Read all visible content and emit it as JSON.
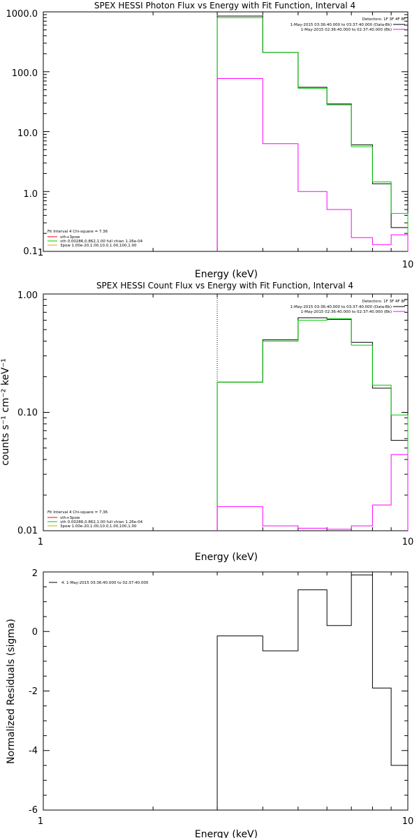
{
  "colors": {
    "data": "#000000",
    "total": "#00cc00",
    "bk": "#ff00ff",
    "vth": "#ff0000",
    "pow": "#00cc00",
    "pow_legend": "#ccaa00"
  },
  "chart_data": [
    {
      "type": "line",
      "title": "SPEX HESSI Photon Flux vs Energy with Fit Function, Interval 4",
      "xlabel": "Energy (keV)",
      "ylabel": "",
      "xscale": "log",
      "yscale": "log",
      "xlim": [
        1,
        10
      ],
      "ylim": [
        0.1,
        1000
      ],
      "xticks": [
        "1",
        "10"
      ],
      "yticks": [
        "0.1",
        "1.0",
        "10.0",
        "100.0",
        "1000.0"
      ],
      "legend_top": [
        "Detectors: 1F 3F 4F 8F",
        "1-May-2015 03:36:40.000 to 03:37:40.000 (Data-Bk)",
        "1-May-2015 02:36:40.000 to 02:37:40.000 (Bk)"
      ],
      "legend_bottom": [
        "Fit Interval 4   Chi-square = 7.36",
        "vth+3pow",
        "vth 0.00286,0.862,1.00  full chian 1.26e-04",
        "3pow 1.00e-20,1.00,10.0,1.00,100,1.00"
      ],
      "edges": [
        3.0,
        4.0,
        5.0,
        6.0,
        7.0,
        8.0,
        9.0,
        10.0
      ],
      "series": [
        {
          "name": "1-May-2015 03:36:40.000 to 03:37:40.000 (Data-Bk)",
          "values": [
            850,
            210,
            55,
            29,
            6,
            1.35,
            0.25
          ]
        },
        {
          "name": "vth+3pow",
          "values": [
            800,
            210,
            53,
            28,
            5.6,
            1.45,
            0.43
          ]
        },
        {
          "name": "1-May-2015 02:36:40.000 to 02:37:40.000 (Bk)",
          "values": [
            77,
            6.3,
            1.0,
            0.5,
            0.17,
            0.13,
            0.19
          ]
        }
      ]
    },
    {
      "type": "line",
      "title": "SPEX HESSI Count Flux vs Energy with Fit Function, Interval 4",
      "xlabel": "Energy (keV)",
      "ylabel": "counts s⁻¹ cm⁻² keV⁻¹",
      "xscale": "log",
      "yscale": "log",
      "xlim": [
        1,
        10
      ],
      "ylim": [
        0.01,
        1
      ],
      "xticks": [
        "1",
        "10"
      ],
      "yticks": [
        "0.01",
        "0.10",
        "1.00"
      ],
      "legend_top": [
        "Detectors: 1F 3F 4F 8F",
        "1-May-2015 03:36:40.000 to 03:37:40.000 (Data-Bk)",
        "1-May-2015 02:36:40.000 to 02:37:40.000 (Bk)"
      ],
      "legend_bottom": [
        "Fit Interval 4   Chi-square = 7.36",
        "vth+3pow",
        "vth 0.00286,0.862,1.00  full chian 1.26e-04",
        "3pow 1.00e-20,1.00,10.0,1.00,100,1.00"
      ],
      "edges": [
        3.0,
        4.0,
        5.0,
        6.0,
        7.0,
        8.0,
        9.0,
        10.0
      ],
      "series": [
        {
          "name": "1-May-2015 03:36:40.000 to 03:37:40.000 (Data-Bk)",
          "values": [
            0.18,
            0.41,
            0.63,
            0.61,
            0.39,
            0.16,
            0.058
          ]
        },
        {
          "name": "vth+3pow",
          "values": [
            0.18,
            0.4,
            0.6,
            0.62,
            0.37,
            0.17,
            0.095
          ]
        },
        {
          "name": "1-May-2015 02:36:40.000 to 02:37:40.000 (Bk)",
          "values": [
            0.016,
            0.011,
            0.0105,
            0.0103,
            0.011,
            0.0165,
            0.044
          ]
        }
      ]
    },
    {
      "type": "line",
      "title": "",
      "xlabel": "Energy (keV)",
      "ylabel": "Normalized Residuals (sigma)",
      "xscale": "log",
      "yscale": "linear",
      "xlim": [
        1,
        10
      ],
      "ylim": [
        -6,
        2
      ],
      "xticks": [
        "1",
        "10"
      ],
      "yticks": [
        "-6",
        "-4",
        "-2",
        "0",
        "2"
      ],
      "legend": [
        "4. 1-May-2015 03:36:40.000 to 02:37:40.000"
      ],
      "edges": [
        3.0,
        4.0,
        5.0,
        6.0,
        7.0,
        8.0,
        9.0,
        10.0
      ],
      "series": [
        {
          "name": "4. 1-May-2015 03:36:40.000 to 02:37:40.000",
          "values": [
            -0.15,
            -0.65,
            1.4,
            0.2,
            1.9,
            -1.9,
            -4.5
          ]
        }
      ]
    }
  ]
}
